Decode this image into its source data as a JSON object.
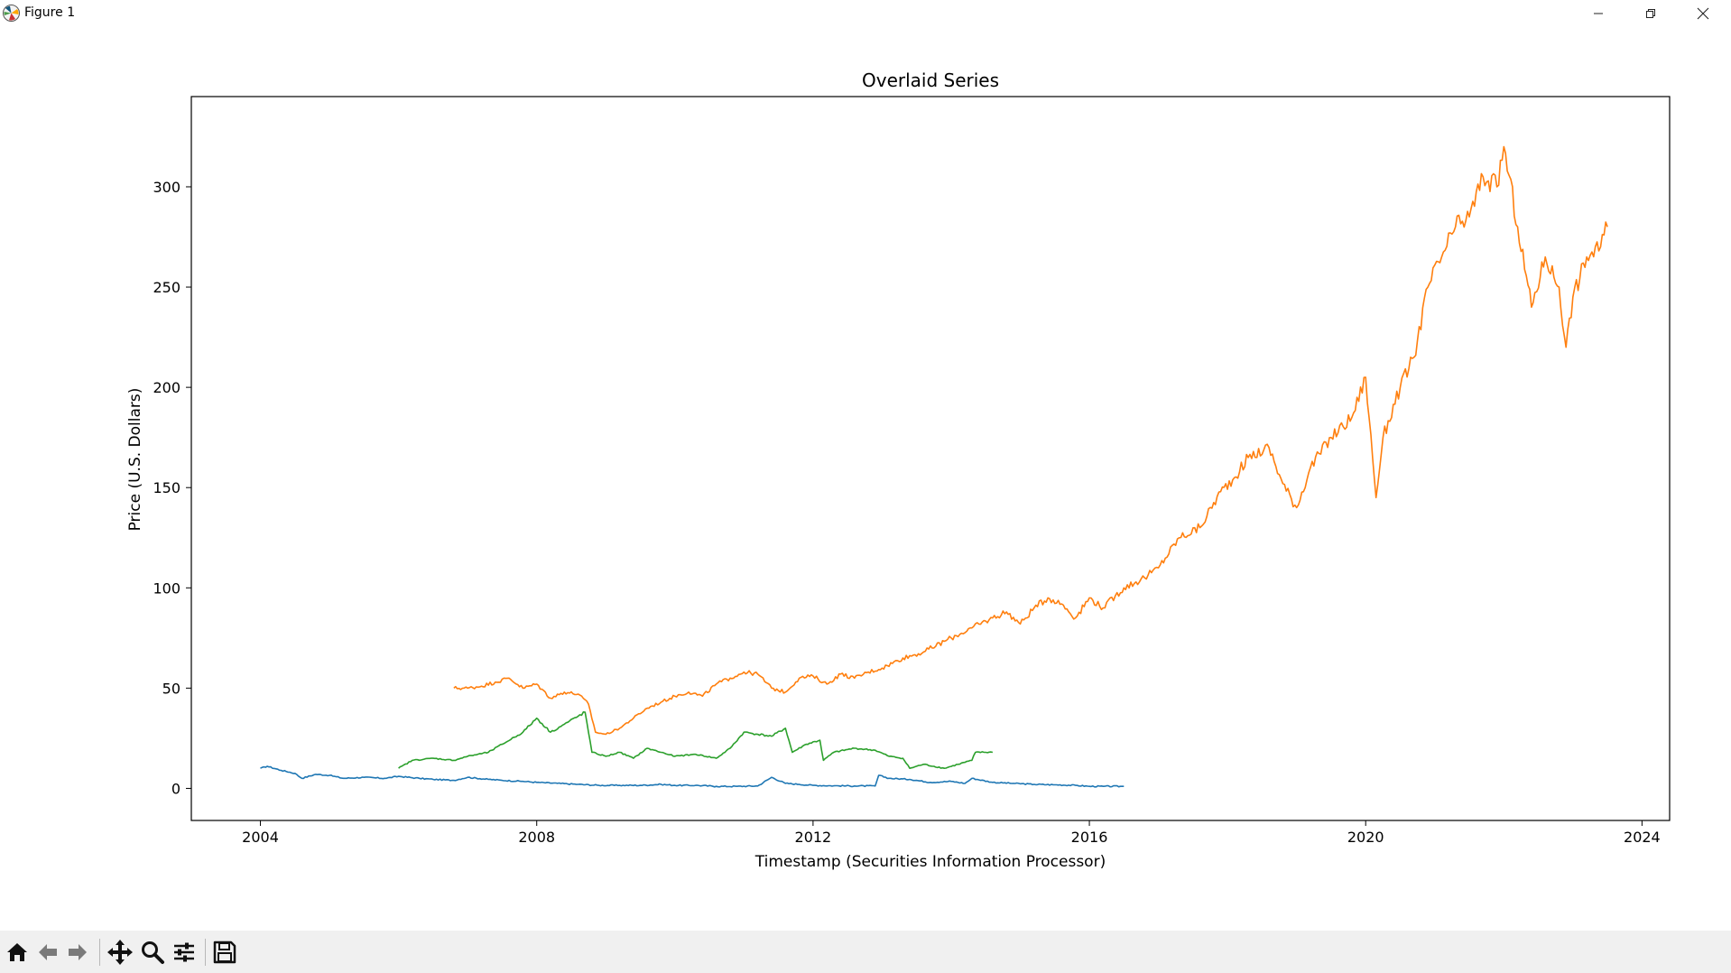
{
  "window": {
    "title": "Figure 1",
    "icon": "matplotlib-logo-icon",
    "controls": [
      "minimize-icon",
      "restore-icon",
      "close-icon"
    ]
  },
  "toolbar": {
    "buttons": [
      {
        "name": "home-icon"
      },
      {
        "name": "back-arrow-icon"
      },
      {
        "name": "forward-arrow-icon"
      },
      {
        "name": "pan-move-icon"
      },
      {
        "name": "zoom-magnifier-icon"
      },
      {
        "name": "configure-subplots-icon"
      },
      {
        "name": "save-disk-icon"
      }
    ]
  },
  "chart_data": {
    "type": "line",
    "title": "Overlaid Series",
    "xlabel": "Timestamp (Securities Information Processor)",
    "ylabel": "Price (U.S. Dollars)",
    "xlim": [
      2003.0,
      2024.4
    ],
    "ylim": [
      -16,
      345
    ],
    "xticks": [
      2004,
      2008,
      2012,
      2016,
      2020,
      2024
    ],
    "xtick_labels": [
      "2004",
      "2008",
      "2012",
      "2016",
      "2020",
      "2024"
    ],
    "yticks": [
      0,
      50,
      100,
      150,
      200,
      250,
      300
    ],
    "ytick_labels": [
      "0",
      "50",
      "100",
      "150",
      "200",
      "250",
      "300"
    ],
    "grid": false,
    "legend": "none",
    "series": [
      {
        "color": "#1f77b4",
        "x": [
          2004.0,
          2004.1,
          2004.3,
          2004.5,
          2004.6,
          2004.8,
          2005.0,
          2005.2,
          2005.5,
          2005.8,
          2006.0,
          2006.3,
          2006.5,
          2006.8,
          2007.0,
          2007.3,
          2007.5,
          2007.8,
          2008.0,
          2008.3,
          2008.6,
          2008.9,
          2009.2,
          2009.5,
          2009.8,
          2010.0,
          2010.3,
          2010.6,
          2010.9,
          2011.2,
          2011.4,
          2011.6,
          2011.8,
          2012.0,
          2012.3,
          2012.6,
          2012.9,
          2012.95,
          2013.1,
          2013.4,
          2013.7,
          2014.0,
          2014.2,
          2014.3,
          2014.6,
          2014.9,
          2015.2,
          2015.5,
          2015.8,
          2016.0,
          2016.2,
          2016.5
        ],
        "y": [
          10,
          11,
          9,
          7.5,
          5,
          7,
          6.5,
          5,
          5.5,
          5,
          6,
          5,
          4.5,
          4,
          5.5,
          4.5,
          4,
          3.5,
          3,
          2.5,
          2,
          1.5,
          1.5,
          1.5,
          2,
          1.5,
          1.5,
          1,
          1,
          1.2,
          5.5,
          2.5,
          2,
          1.5,
          1.3,
          1.2,
          1.2,
          6.5,
          5,
          4.5,
          3,
          3.5,
          2.5,
          5,
          3,
          2.5,
          2,
          1.8,
          1.5,
          1,
          1,
          1
        ]
      },
      {
        "color": "#ff7f0e",
        "x": [
          2006.8,
          2007.0,
          2007.2,
          2007.4,
          2007.6,
          2007.8,
          2008.0,
          2008.2,
          2008.4,
          2008.6,
          2008.75,
          2008.85,
          2009.0,
          2009.2,
          2009.4,
          2009.6,
          2009.8,
          2010.0,
          2010.2,
          2010.4,
          2010.6,
          2010.8,
          2011.0,
          2011.2,
          2011.4,
          2011.6,
          2011.8,
          2012.0,
          2012.2,
          2012.4,
          2012.6,
          2012.8,
          2013.0,
          2013.3,
          2013.6,
          2014.0,
          2014.3,
          2014.6,
          2014.8,
          2015.0,
          2015.2,
          2015.4,
          2015.6,
          2015.8,
          2016.0,
          2016.2,
          2016.5,
          2016.8,
          2017.0,
          2017.3,
          2017.6,
          2017.9,
          2018.1,
          2018.3,
          2018.6,
          2018.8,
          2019.0,
          2019.2,
          2019.5,
          2019.8,
          2020.0,
          2020.15,
          2020.25,
          2020.5,
          2020.7,
          2020.9,
          2021.1,
          2021.3,
          2021.5,
          2021.7,
          2021.9,
          2022.0,
          2022.2,
          2022.4,
          2022.6,
          2022.8,
          2022.9,
          2023.0,
          2023.2,
          2023.4,
          2023.5
        ],
        "y": [
          50,
          50,
          51,
          53,
          55,
          50,
          52,
          45,
          48,
          47,
          42,
          28,
          27,
          30,
          35,
          40,
          43,
          46,
          48,
          46,
          52,
          55,
          58,
          57,
          50,
          48,
          55,
          56,
          52,
          57,
          55,
          58,
          60,
          65,
          68,
          75,
          80,
          85,
          88,
          82,
          90,
          95,
          92,
          85,
          95,
          90,
          100,
          105,
          110,
          125,
          130,
          148,
          155,
          165,
          170,
          152,
          140,
          160,
          175,
          185,
          205,
          145,
          175,
          200,
          215,
          250,
          265,
          280,
          285,
          305,
          300,
          320,
          280,
          240,
          265,
          250,
          220,
          245,
          265,
          270,
          280
        ]
      },
      {
        "color": "#2ca02c",
        "x": [
          2006.0,
          2006.2,
          2006.5,
          2006.8,
          2007.0,
          2007.3,
          2007.5,
          2007.8,
          2008.0,
          2008.2,
          2008.4,
          2008.6,
          2008.7,
          2008.8,
          2009.0,
          2009.2,
          2009.4,
          2009.6,
          2009.8,
          2010.0,
          2010.3,
          2010.6,
          2010.8,
          2011.0,
          2011.2,
          2011.4,
          2011.6,
          2011.7,
          2011.9,
          2012.1,
          2012.15,
          2012.3,
          2012.6,
          2012.9,
          2013.1,
          2013.3,
          2013.4,
          2013.6,
          2013.9,
          2014.1,
          2014.3,
          2014.35,
          2014.6
        ],
        "y": [
          10,
          14,
          15,
          14,
          16,
          18,
          22,
          28,
          35,
          28,
          32,
          36,
          38,
          18,
          16,
          18,
          15,
          20,
          18,
          16,
          17,
          15,
          20,
          28,
          27,
          26,
          30,
          18,
          22,
          24,
          14,
          18,
          20,
          19,
          16,
          15,
          10,
          12,
          10,
          12,
          14,
          18,
          18
        ]
      }
    ]
  }
}
